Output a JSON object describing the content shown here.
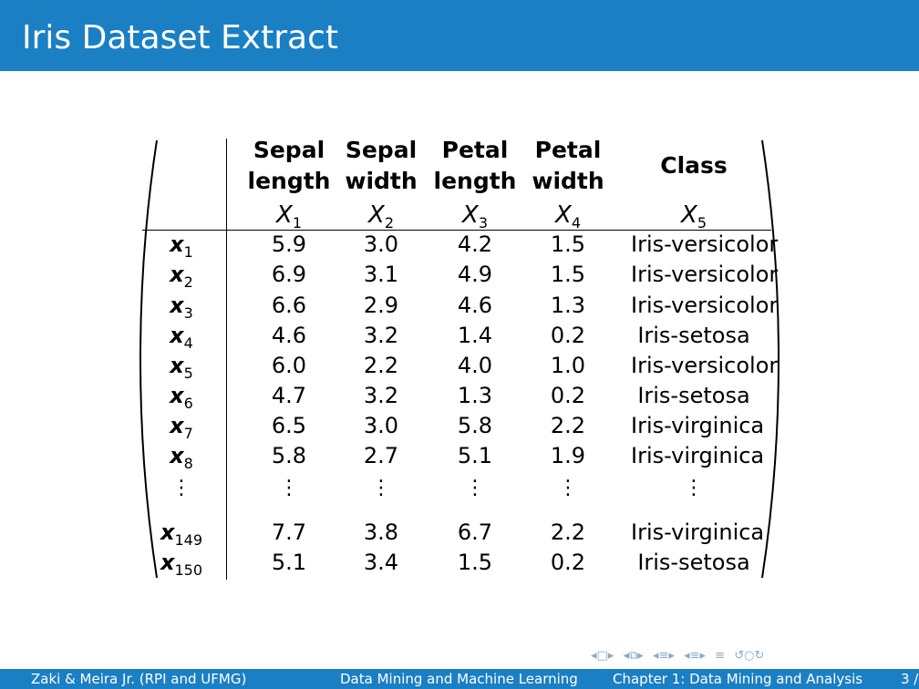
{
  "slide": {
    "title": "Iris Dataset Extract"
  },
  "table": {
    "header_lines": [
      [
        "Sepal",
        "length"
      ],
      [
        "Sepal",
        "width"
      ],
      [
        "Petal",
        "length"
      ],
      [
        "Petal",
        "width"
      ],
      [
        "Class"
      ]
    ],
    "variables": [
      {
        "name": "X",
        "index": "1"
      },
      {
        "name": "X",
        "index": "2"
      },
      {
        "name": "X",
        "index": "3"
      },
      {
        "name": "X",
        "index": "4"
      },
      {
        "name": "X",
        "index": "5"
      }
    ],
    "rows": [
      {
        "label": "x",
        "index": "1",
        "values": [
          "5.9",
          "3.0",
          "4.2",
          "1.5",
          "Iris-versicolor"
        ]
      },
      {
        "label": "x",
        "index": "2",
        "values": [
          "6.9",
          "3.1",
          "4.9",
          "1.5",
          "Iris-versicolor"
        ]
      },
      {
        "label": "x",
        "index": "3",
        "values": [
          "6.6",
          "2.9",
          "4.6",
          "1.3",
          "Iris-versicolor"
        ]
      },
      {
        "label": "x",
        "index": "4",
        "values": [
          "4.6",
          "3.2",
          "1.4",
          "0.2",
          "Iris-setosa"
        ]
      },
      {
        "label": "x",
        "index": "5",
        "values": [
          "6.0",
          "2.2",
          "4.0",
          "1.0",
          "Iris-versicolor"
        ]
      },
      {
        "label": "x",
        "index": "6",
        "values": [
          "4.7",
          "3.2",
          "1.3",
          "0.2",
          "Iris-setosa"
        ]
      },
      {
        "label": "x",
        "index": "7",
        "values": [
          "6.5",
          "3.0",
          "5.8",
          "2.2",
          "Iris-virginica"
        ]
      },
      {
        "label": "x",
        "index": "8",
        "values": [
          "5.8",
          "2.7",
          "5.1",
          "1.9",
          "Iris-virginica"
        ]
      },
      {
        "label": "x",
        "index": "149",
        "values": [
          "7.7",
          "3.8",
          "6.7",
          "2.2",
          "Iris-virginica"
        ]
      },
      {
        "label": "x",
        "index": "150",
        "values": [
          "5.1",
          "3.4",
          "1.5",
          "0.2",
          "Iris-setosa"
        ]
      }
    ],
    "ellipsis": "⋮"
  },
  "footer": {
    "authors": "Zaki & Meira Jr.  (RPI and UFMG)",
    "course": "Data Mining and Machine Learning",
    "chapter": "Chapter 1: Data Mining and Analysis",
    "page": "3 /"
  },
  "nav_icons": [
    "nav-prev-frame-icon",
    "nav-next-frame-icon",
    "nav-prev-section-icon",
    "nav-next-section-icon",
    "nav-prev-subsection-icon",
    "nav-next-subsection-icon",
    "nav-align-icon",
    "nav-search-icon"
  ],
  "colors": {
    "title_bar": "#1b7fc4",
    "footer_bar": "#1b7fc4",
    "nav_icons": "#8fa9c8"
  }
}
